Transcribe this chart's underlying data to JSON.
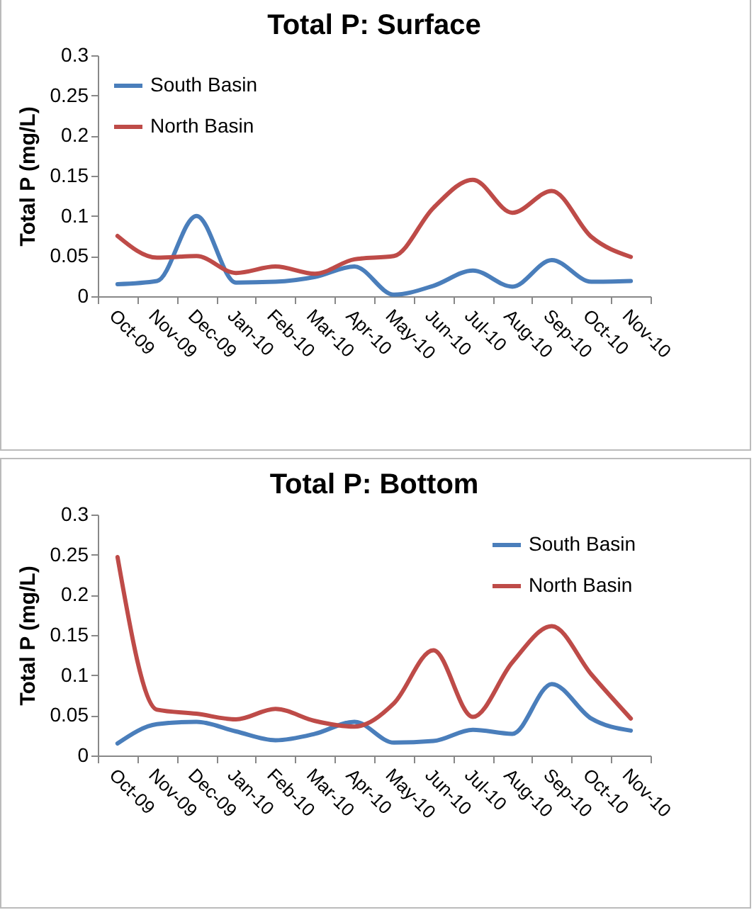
{
  "chart_data": [
    {
      "type": "line",
      "title": "Total P: Surface",
      "ylabel": "Total P (mg/L)",
      "categories": [
        "Oct-09",
        "Nov-09",
        "Dec-09",
        "Jan-10",
        "Feb-10",
        "Mar-10",
        "Apr-10",
        "May-10",
        "Jun-10",
        "Jul-10",
        "Aug-10",
        "Sep-10",
        "Oct-10",
        "Nov-10"
      ],
      "series": [
        {
          "name": "South Basin",
          "color": "#4a7ebb",
          "values": [
            0.015,
            0.019,
            0.1,
            0.017,
            0.018,
            0.024,
            0.037,
            0.002,
            0.013,
            0.032,
            0.012,
            0.045,
            0.018,
            0.019
          ]
        },
        {
          "name": "North Basin",
          "color": "#be4b48",
          "values": [
            0.075,
            0.048,
            0.05,
            0.029,
            0.037,
            0.028,
            0.046,
            0.05,
            0.11,
            0.145,
            0.104,
            0.131,
            0.074,
            0.049
          ]
        }
      ],
      "ylim": [
        0,
        0.3
      ],
      "yticks": [
        0,
        0.05,
        0.1,
        0.15,
        0.2,
        0.25,
        0.3
      ],
      "legend": "top left"
    },
    {
      "type": "line",
      "title": "Total P: Bottom",
      "ylabel": "Total P (mg/L)",
      "categories": [
        "Oct-09",
        "Nov-09",
        "Dec-09",
        "Jan-10",
        "Feb-10",
        "Mar-10",
        "Apr-10",
        "May-10",
        "Jun-10",
        "Jul-10",
        "Aug-10",
        "Sep-10",
        "Oct-10",
        "Nov-10"
      ],
      "series": [
        {
          "name": "South Basin",
          "color": "#4a7ebb",
          "values": [
            0.015,
            0.039,
            0.042,
            0.03,
            0.019,
            0.027,
            0.042,
            0.016,
            0.018,
            0.032,
            0.027,
            0.089,
            0.046,
            0.031
          ]
        },
        {
          "name": "North Basin",
          "color": "#be4b48",
          "values": [
            0.247,
            0.057,
            0.052,
            0.045,
            0.058,
            0.043,
            0.036,
            0.065,
            0.131,
            0.048,
            0.116,
            0.161,
            0.101,
            0.046
          ]
        }
      ],
      "ylim": [
        0,
        0.3
      ],
      "yticks": [
        0,
        0.05,
        0.1,
        0.15,
        0.2,
        0.25,
        0.3
      ],
      "legend": "top right"
    }
  ]
}
